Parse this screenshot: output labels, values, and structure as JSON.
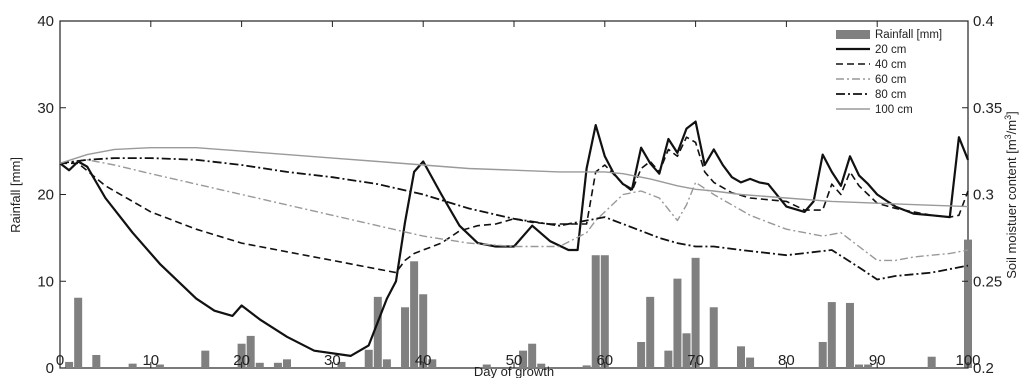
{
  "chart_data": {
    "type": "bar",
    "title": "",
    "xlabel": "Day of growth",
    "ylabel": "Rainfall [mm]",
    "y2label": "Soil moistuer content [m",
    "y2label_unit_a": "3",
    "y2label_mid": "/m",
    "y2label_unit_b": "3",
    "y2label_end": "]",
    "xlim": [
      0,
      100
    ],
    "ylim": [
      0,
      40
    ],
    "y2lim": [
      0.2,
      0.4
    ],
    "xticks": [
      0,
      10,
      20,
      30,
      40,
      50,
      60,
      70,
      80,
      90,
      100
    ],
    "yticks": [
      0,
      10,
      20,
      30,
      40
    ],
    "y2ticks": [
      "0.2",
      "0.25",
      "0.3",
      "0.35",
      "0.4"
    ],
    "legend_position": "top-right",
    "rainfall": {
      "name": "Rainfall [mm]",
      "color": "#808080",
      "days": [
        1,
        2,
        4,
        8,
        11,
        16,
        20,
        21,
        22,
        24,
        25,
        31,
        34,
        35,
        36,
        38,
        39,
        40,
        41,
        47,
        51,
        52,
        53,
        58,
        59,
        60,
        64,
        65,
        67,
        68,
        69,
        70,
        72,
        75,
        76,
        84,
        85,
        87,
        88,
        89,
        96,
        100
      ],
      "values": [
        0.7,
        8.1,
        1.5,
        0.5,
        0.4,
        2.0,
        2.8,
        3.7,
        0.6,
        0.6,
        1.0,
        0.7,
        2.1,
        8.2,
        1.0,
        7.0,
        12.3,
        8.5,
        1.0,
        0.4,
        2.0,
        2.8,
        0.5,
        0.3,
        13.0,
        13.0,
        3.0,
        8.2,
        2.0,
        10.3,
        4.0,
        12.7,
        7.0,
        2.5,
        1.2,
        3.0,
        7.6,
        7.5,
        0.4,
        0.4,
        1.3,
        14.8
      ]
    },
    "series": [
      {
        "name": "20 cm",
        "color": "#111111",
        "dash": "",
        "width": 2.2,
        "x": [
          0,
          1,
          2,
          3,
          5,
          8,
          11,
          15,
          17,
          19,
          20,
          22,
          25,
          28,
          32,
          34,
          36,
          37,
          38,
          39,
          40,
          42,
          44,
          46,
          48,
          50,
          52,
          54,
          56,
          57,
          58,
          59,
          60,
          61,
          62,
          63,
          64,
          65,
          66,
          67,
          68,
          69,
          70,
          71,
          72,
          73,
          74,
          75,
          76,
          77,
          78,
          80,
          82,
          83,
          84,
          85,
          86,
          87,
          88,
          89,
          90,
          92,
          94,
          96,
          98,
          99,
          100
        ],
        "y": [
          0.318,
          0.314,
          0.319,
          0.316,
          0.298,
          0.278,
          0.26,
          0.24,
          0.233,
          0.23,
          0.236,
          0.228,
          0.218,
          0.21,
          0.207,
          0.213,
          0.24,
          0.25,
          0.284,
          0.313,
          0.319,
          0.3,
          0.282,
          0.272,
          0.27,
          0.27,
          0.282,
          0.273,
          0.268,
          0.268,
          0.315,
          0.34,
          0.322,
          0.312,
          0.306,
          0.303,
          0.327,
          0.318,
          0.312,
          0.332,
          0.324,
          0.338,
          0.342,
          0.317,
          0.326,
          0.317,
          0.31,
          0.307,
          0.309,
          0.307,
          0.306,
          0.293,
          0.29,
          0.296,
          0.323,
          0.313,
          0.305,
          0.322,
          0.311,
          0.306,
          0.3,
          0.293,
          0.289,
          0.288,
          0.287,
          0.333,
          0.32
        ]
      },
      {
        "name": "40 cm",
        "color": "#111111",
        "dash": "7,4",
        "width": 1.6,
        "x": [
          0,
          2,
          5,
          10,
          15,
          20,
          25,
          30,
          35,
          37,
          38,
          39,
          40,
          42,
          44,
          46,
          48,
          50,
          52,
          54,
          56,
          58,
          59,
          60,
          62,
          63,
          64,
          65,
          66,
          67,
          68,
          69,
          70,
          71,
          72,
          74,
          76,
          78,
          80,
          82,
          84,
          85,
          86,
          87,
          88,
          89,
          90,
          92,
          94,
          96,
          98,
          99,
          100
        ],
        "y": [
          0.318,
          0.318,
          0.305,
          0.29,
          0.28,
          0.272,
          0.267,
          0.262,
          0.257,
          0.255,
          0.262,
          0.266,
          0.268,
          0.272,
          0.279,
          0.282,
          0.283,
          0.286,
          0.284,
          0.283,
          0.283,
          0.283,
          0.313,
          0.317,
          0.306,
          0.302,
          0.315,
          0.319,
          0.313,
          0.326,
          0.322,
          0.333,
          0.33,
          0.313,
          0.307,
          0.301,
          0.298,
          0.297,
          0.296,
          0.291,
          0.291,
          0.306,
          0.3,
          0.313,
          0.305,
          0.3,
          0.295,
          0.292,
          0.29,
          0.288,
          0.287,
          0.288,
          0.302
        ]
      },
      {
        "name": "60 cm",
        "color": "#999999",
        "dash": "8,3,2,3",
        "width": 1.4,
        "x": [
          0,
          3,
          6,
          10,
          15,
          20,
          25,
          30,
          35,
          40,
          45,
          50,
          55,
          58,
          59,
          60,
          62,
          64,
          66,
          68,
          69,
          70,
          72,
          74,
          76,
          78,
          80,
          84,
          86,
          88,
          90,
          92,
          94,
          96,
          98,
          100
        ],
        "y": [
          0.318,
          0.32,
          0.317,
          0.312,
          0.306,
          0.3,
          0.294,
          0.288,
          0.282,
          0.276,
          0.272,
          0.27,
          0.27,
          0.278,
          0.285,
          0.29,
          0.3,
          0.302,
          0.298,
          0.285,
          0.294,
          0.307,
          0.3,
          0.294,
          0.288,
          0.284,
          0.28,
          0.276,
          0.278,
          0.27,
          0.262,
          0.262,
          0.264,
          0.265,
          0.266,
          0.268
        ]
      },
      {
        "name": "80 cm",
        "color": "#111111",
        "dash": "9,3,2,3",
        "width": 1.8,
        "x": [
          0,
          3,
          6,
          10,
          15,
          20,
          25,
          30,
          35,
          40,
          45,
          50,
          55,
          58,
          60,
          62,
          64,
          66,
          68,
          70,
          72,
          75,
          80,
          85,
          88,
          90,
          92,
          96,
          100
        ],
        "y": [
          0.318,
          0.32,
          0.321,
          0.321,
          0.32,
          0.317,
          0.313,
          0.31,
          0.306,
          0.3,
          0.292,
          0.286,
          0.282,
          0.285,
          0.287,
          0.283,
          0.279,
          0.275,
          0.272,
          0.27,
          0.27,
          0.268,
          0.265,
          0.268,
          0.258,
          0.251,
          0.253,
          0.255,
          0.259
        ]
      },
      {
        "name": "100 cm",
        "color": "#9a9a9a",
        "dash": "",
        "width": 1.4,
        "x": [
          0,
          3,
          6,
          10,
          15,
          20,
          25,
          30,
          35,
          40,
          45,
          50,
          55,
          58,
          60,
          62,
          65,
          68,
          70,
          72,
          75,
          80,
          85,
          90,
          95,
          100
        ],
        "y": [
          0.318,
          0.323,
          0.326,
          0.327,
          0.327,
          0.325,
          0.323,
          0.321,
          0.319,
          0.317,
          0.315,
          0.314,
          0.313,
          0.313,
          0.313,
          0.312,
          0.309,
          0.305,
          0.303,
          0.302,
          0.3,
          0.298,
          0.296,
          0.295,
          0.294,
          0.293
        ]
      }
    ]
  }
}
